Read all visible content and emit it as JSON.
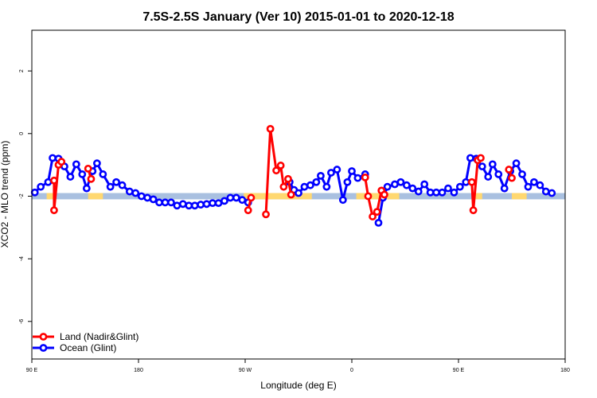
{
  "chart_data": {
    "type": "line",
    "title": "7.5S-2.5S January (Ver 10)   2015-01-01 to 2020-12-18",
    "xlabel": "Longitude (deg E)",
    "ylabel": "XCO2 - MLO trend (ppm)",
    "xlim": [
      90,
      450
    ],
    "ylim": [
      -7.2,
      3.3
    ],
    "x_ticks": [
      {
        "value": 90,
        "label": "90 E"
      },
      {
        "value": 162,
        "label": "180"
      },
      {
        "value": 234,
        "label": "90 W"
      },
      {
        "value": 306,
        "label": "0"
      },
      {
        "value": 378,
        "label": "90 E"
      },
      {
        "value": 450,
        "label": "180"
      }
    ],
    "y_ticks": [
      {
        "value": 2,
        "label": "2"
      },
      {
        "value": 0,
        "label": "0"
      },
      {
        "value": -2,
        "label": "-2"
      },
      {
        "value": -4,
        "label": "-4"
      },
      {
        "value": -6,
        "label": "-6"
      }
    ],
    "grid": false,
    "legend_position": "bottom-left",
    "land_mask": {
      "baseline": -2,
      "band_height": 0.2,
      "ocean_color": "#a9c0e0",
      "land_color": "#ffd870",
      "land_segments": [
        [
          100,
          106
        ],
        [
          128,
          138
        ],
        [
          233,
          279
        ],
        [
          309,
          338
        ],
        [
          388,
          394
        ],
        [
          414,
          424
        ]
      ]
    },
    "series": [
      {
        "name": "Land (Nadir&Glint)",
        "color": "#ff0000",
        "segments": [
          [
            [
              105,
              -1.5
            ],
            [
              105,
              -2.45
            ],
            [
              108,
              -1.0
            ],
            [
              110,
              -0.9
            ]
          ],
          [
            [
              128,
              -1.12
            ],
            [
              130,
              -1.45
            ]
          ],
          [
            [
              236,
              -2.45
            ],
            [
              238,
              -2.05
            ]
          ],
          [
            [
              248,
              -2.58
            ],
            [
              251,
              0.15
            ],
            [
              255,
              -1.18
            ],
            [
              258,
              -1.02
            ],
            [
              260,
              -1.7
            ],
            [
              263,
              -1.45
            ],
            [
              265,
              -1.95
            ]
          ],
          [
            [
              315,
              -1.4
            ],
            [
              317,
              -2.0
            ],
            [
              320,
              -2.65
            ],
            [
              323,
              -2.5
            ],
            [
              326,
              -1.82
            ],
            [
              328,
              -1.95
            ]
          ],
          [
            [
              387,
              -1.55
            ],
            [
              388,
              -2.45
            ],
            [
              391,
              -0.85
            ],
            [
              393,
              -0.78
            ]
          ],
          [
            [
              412,
              -1.15
            ],
            [
              414,
              -1.42
            ]
          ]
        ]
      },
      {
        "name": "Ocean (Glint)",
        "color": "#0000ff",
        "segments": [
          [
            [
              92,
              -1.88
            ],
            [
              96,
              -1.7
            ],
            [
              101,
              -1.55
            ],
            [
              104,
              -0.78
            ],
            [
              108,
              -0.8
            ],
            [
              112,
              -1.05
            ],
            [
              116,
              -1.38
            ],
            [
              120,
              -0.98
            ],
            [
              124,
              -1.3
            ],
            [
              127,
              -1.75
            ],
            [
              131,
              -1.2
            ],
            [
              134,
              -0.95
            ],
            [
              138,
              -1.3
            ],
            [
              143,
              -1.7
            ],
            [
              147,
              -1.55
            ],
            [
              151,
              -1.65
            ],
            [
              156,
              -1.85
            ],
            [
              160,
              -1.9
            ],
            [
              164,
              -2.0
            ],
            [
              168,
              -2.05
            ],
            [
              172,
              -2.1
            ],
            [
              176,
              -2.2
            ],
            [
              180,
              -2.2
            ],
            [
              184,
              -2.2
            ],
            [
              188,
              -2.3
            ],
            [
              192,
              -2.25
            ],
            [
              196,
              -2.3
            ],
            [
              200,
              -2.3
            ],
            [
              204,
              -2.27
            ],
            [
              208,
              -2.25
            ],
            [
              212,
              -2.22
            ],
            [
              216,
              -2.22
            ],
            [
              220,
              -2.15
            ],
            [
              224,
              -2.05
            ],
            [
              228,
              -2.05
            ],
            [
              232,
              -2.12
            ],
            [
              236,
              -2.2
            ]
          ],
          [
            [
              264,
              -1.55
            ],
            [
              267,
              -1.8
            ],
            [
              270,
              -1.9
            ],
            [
              274,
              -1.7
            ],
            [
              278,
              -1.65
            ],
            [
              282,
              -1.55
            ],
            [
              285,
              -1.35
            ],
            [
              289,
              -1.7
            ],
            [
              292,
              -1.25
            ],
            [
              296,
              -1.15
            ],
            [
              300,
              -2.12
            ],
            [
              303,
              -1.55
            ],
            [
              306,
              -1.2
            ],
            [
              310,
              -1.42
            ],
            [
              315,
              -1.3
            ]
          ],
          [
            [
              324,
              -2.85
            ],
            [
              327,
              -2.05
            ],
            [
              330,
              -1.7
            ],
            [
              335,
              -1.62
            ],
            [
              339,
              -1.55
            ],
            [
              343,
              -1.65
            ],
            [
              347,
              -1.75
            ],
            [
              351,
              -1.85
            ],
            [
              355,
              -1.62
            ],
            [
              359,
              -1.88
            ],
            [
              363,
              -1.88
            ],
            [
              367,
              -1.88
            ],
            [
              371,
              -1.75
            ],
            [
              375,
              -1.88
            ],
            [
              379,
              -1.7
            ],
            [
              383,
              -1.55
            ],
            [
              386,
              -0.78
            ],
            [
              390,
              -0.8
            ],
            [
              394,
              -1.05
            ],
            [
              398,
              -1.38
            ],
            [
              401,
              -0.98
            ],
            [
              405,
              -1.3
            ],
            [
              409,
              -1.75
            ],
            [
              413,
              -1.2
            ],
            [
              417,
              -0.95
            ],
            [
              421,
              -1.3
            ],
            [
              425,
              -1.7
            ],
            [
              429,
              -1.55
            ],
            [
              433,
              -1.65
            ],
            [
              437,
              -1.85
            ],
            [
              441,
              -1.9
            ]
          ]
        ]
      }
    ]
  }
}
